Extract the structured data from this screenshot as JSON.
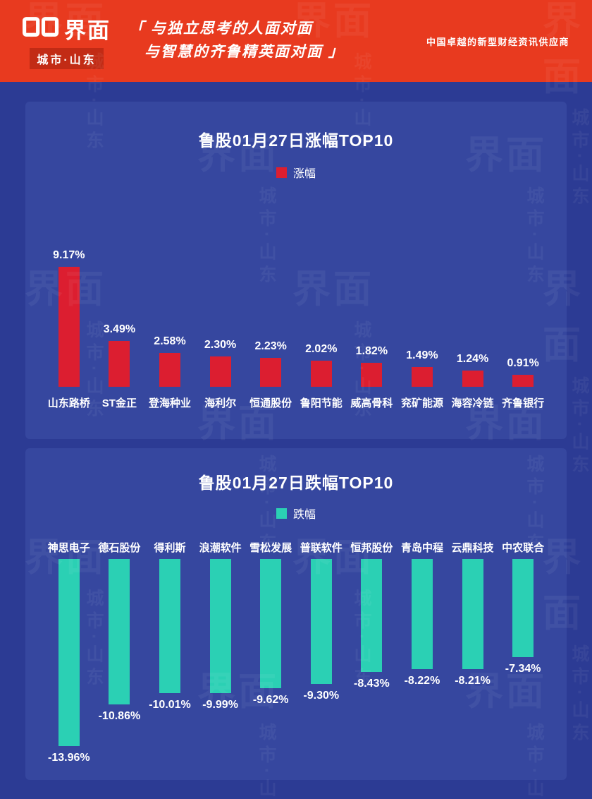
{
  "header": {
    "logo_text": "界面",
    "logo_sub": "城市·山东",
    "quote_line1": "「 与独立思考的人面对面",
    "quote_line2": "与智慧的齐鲁精英面对面 」",
    "tagline": "中国卓越的新型财经资讯供应商",
    "colors": {
      "bg": "#e83a1f",
      "logo_box": "#c22b15"
    }
  },
  "watermark": {
    "logo": "界面",
    "sub": "城市·山东"
  },
  "page_colors": {
    "background": "#2c3b94",
    "card": "#36479f"
  },
  "chart_data": [
    {
      "type": "bar",
      "title": "鲁股01月27日涨幅TOP10",
      "legend": "涨幅",
      "bar_color": "#dc1e30",
      "direction": "up",
      "categories": [
        "山东路桥",
        "ST金正",
        "登海种业",
        "海利尔",
        "恒通股份",
        "鲁阳节能",
        "威高骨科",
        "兖矿能源",
        "海容冷链",
        "齐鲁银行"
      ],
      "values": [
        9.17,
        3.49,
        2.58,
        2.3,
        2.23,
        2.02,
        1.82,
        1.49,
        1.24,
        0.91
      ],
      "labels": [
        "9.17%",
        "3.49%",
        "2.58%",
        "2.30%",
        "2.23%",
        "2.02%",
        "1.82%",
        "1.49%",
        "1.24%",
        "0.91%"
      ],
      "xlabel": "",
      "ylabel": "涨幅",
      "ylim": [
        0,
        10
      ],
      "grid": false,
      "legend_position": "top"
    },
    {
      "type": "bar",
      "title": "鲁股01月27日跌幅TOP10",
      "legend": "跌幅",
      "bar_color": "#2bd0b4",
      "direction": "down",
      "categories": [
        "神思电子",
        "德石股份",
        "得利斯",
        "浪潮软件",
        "雪松发展",
        "普联软件",
        "恒邦股份",
        "青岛中程",
        "云鼎科技",
        "中农联合"
      ],
      "values": [
        -13.96,
        -10.86,
        -10.01,
        -9.99,
        -9.62,
        -9.3,
        -8.43,
        -8.22,
        -8.21,
        -7.34
      ],
      "labels": [
        "-13.96%",
        "-10.86%",
        "-10.01%",
        "-9.99%",
        "-9.62%",
        "-9.30%",
        "-8.43%",
        "-8.22%",
        "-8.21%",
        "-7.34%"
      ],
      "xlabel": "",
      "ylabel": "跌幅",
      "ylim": [
        -15,
        0
      ],
      "grid": false,
      "legend_position": "top"
    }
  ]
}
